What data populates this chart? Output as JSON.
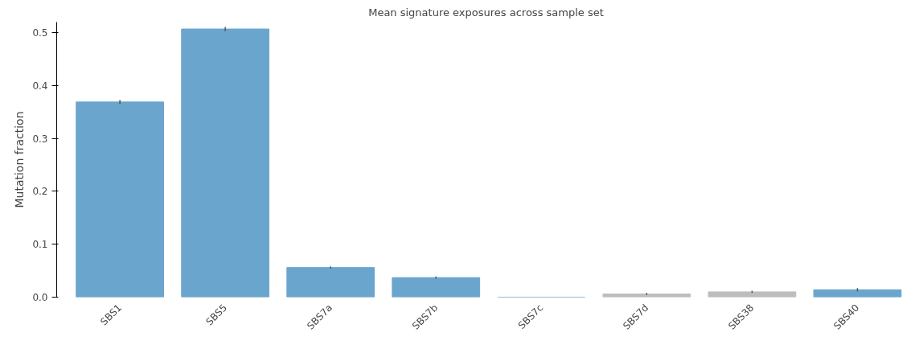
{
  "chart_data": {
    "type": "bar",
    "title": "Mean signature exposures across sample set",
    "ylabel": "Mutation fraction",
    "categories": [
      "SBS1",
      "SBS5",
      "SBS7a",
      "SBS7b",
      "SBS7c",
      "SBS7d",
      "SBS38",
      "SBS40"
    ],
    "values": [
      0.369,
      0.507,
      0.056,
      0.037,
      0,
      0.006,
      0.01,
      0.014
    ],
    "colors": [
      "#6aa5cd",
      "#6aa5cd",
      "#6aa5cd",
      "#6aa5cd",
      "#6aa5cd",
      "#bdbdbd",
      "#bdbdbd",
      "#6aa5cd"
    ],
    "errors": [
      0.004,
      0.004,
      0.002,
      0.002,
      null,
      0.002,
      0.002,
      0.003
    ],
    "ylim": [
      0,
      0.52
    ],
    "yticks": [
      {
        "value": 0,
        "label": "0.0"
      },
      0.1,
      0.2,
      0.3,
      0.4,
      0.5
    ],
    "grid": false
  }
}
